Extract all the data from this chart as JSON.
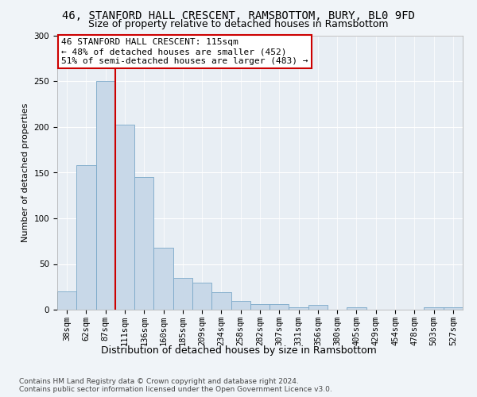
{
  "title1": "46, STANFORD HALL CRESCENT, RAMSBOTTOM, BURY, BL0 9FD",
  "title2": "Size of property relative to detached houses in Ramsbottom",
  "xlabel": "Distribution of detached houses by size in Ramsbottom",
  "ylabel": "Number of detached properties",
  "categories": [
    "38sqm",
    "62sqm",
    "87sqm",
    "111sqm",
    "136sqm",
    "160sqm",
    "185sqm",
    "209sqm",
    "234sqm",
    "258sqm",
    "282sqm",
    "307sqm",
    "331sqm",
    "356sqm",
    "380sqm",
    "405sqm",
    "429sqm",
    "454sqm",
    "478sqm",
    "503sqm",
    "527sqm"
  ],
  "values": [
    20,
    158,
    250,
    203,
    145,
    68,
    35,
    30,
    19,
    10,
    6,
    6,
    3,
    5,
    0,
    3,
    0,
    0,
    0,
    3,
    3
  ],
  "bar_color": "#c8d8e8",
  "bar_edge_color": "#7aa8c8",
  "vline_x_index": 3,
  "vline_color": "#cc0000",
  "annotation_text": "46 STANFORD HALL CRESCENT: 115sqm\n← 48% of detached houses are smaller (452)\n51% of semi-detached houses are larger (483) →",
  "annotation_box_color": "#ffffff",
  "annotation_box_edge": "#cc0000",
  "ylim": [
    0,
    300
  ],
  "yticks": [
    0,
    50,
    100,
    150,
    200,
    250,
    300
  ],
  "fig_bg_color": "#f0f4f8",
  "plot_bg_color": "#e8eef4",
  "footer": "Contains HM Land Registry data © Crown copyright and database right 2024.\nContains public sector information licensed under the Open Government Licence v3.0.",
  "title1_fontsize": 10,
  "title2_fontsize": 9,
  "xlabel_fontsize": 9,
  "ylabel_fontsize": 8,
  "tick_fontsize": 7.5,
  "annotation_fontsize": 8,
  "footer_fontsize": 6.5
}
